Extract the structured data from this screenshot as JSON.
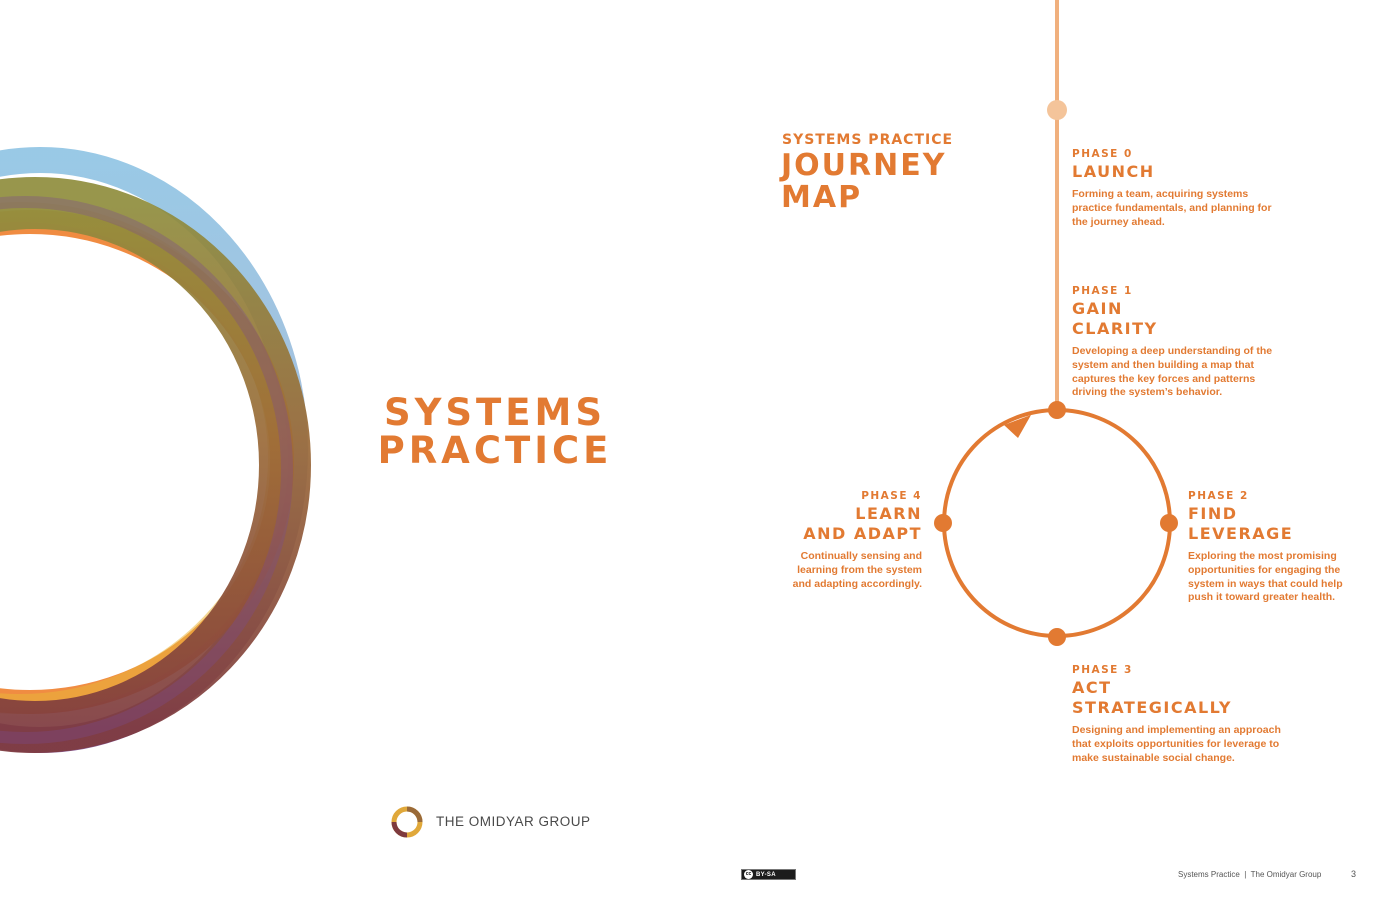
{
  "main_title": {
    "line1": "SYSTEMS",
    "line2": "PRACTICE"
  },
  "journey": {
    "subtitle": "SYSTEMS PRACTICE",
    "title_line1": "JOURNEY",
    "title_line2": "MAP"
  },
  "phases": [
    {
      "number": "PHASE 0",
      "name_line1": "LAUNCH",
      "name_line2": "",
      "description": "Forming a team, acquiring systems practice fundamentals, and planning for the journey ahead."
    },
    {
      "number": "PHASE 1",
      "name_line1": "GAIN",
      "name_line2": "CLARITY",
      "description": "Developing a deep understanding of the system and then building a map that captures the key forces and patterns driving the system’s behavior."
    },
    {
      "number": "PHASE 2",
      "name_line1": "FIND",
      "name_line2": "LEVERAGE",
      "description": "Exploring the most promising opportunities for engaging the system in ways that could help push it toward greater health."
    },
    {
      "number": "PHASE 3",
      "name_line1": "ACT",
      "name_line2": "STRATEGICALLY",
      "description": "Designing and implementing an approach that exploits opportunities for leverage to make sustainable social change."
    },
    {
      "number": "PHASE 4",
      "name_line1": "LEARN",
      "name_line2": "AND ADAPT",
      "description": "Continually sensing and learning from the system and adapting accordingly."
    }
  ],
  "logo": {
    "text": "THE OMIDYAR GROUP"
  },
  "license": {
    "label": "BY-SA",
    "cc": "cc"
  },
  "footer": {
    "text": "Systems Practice  |  The Omidyar Group",
    "page_number": "3"
  },
  "colors": {
    "accent": "#e27a32",
    "line_light": "#f0b07e",
    "ring_blue": "#8ec3e3",
    "ring_orange": "#ee7f2d",
    "ring_gold": "#eab43a",
    "ring_olive": "#8c8a3e",
    "ring_brown": "#9a5a34",
    "ring_purple": "#7b4a8c"
  }
}
